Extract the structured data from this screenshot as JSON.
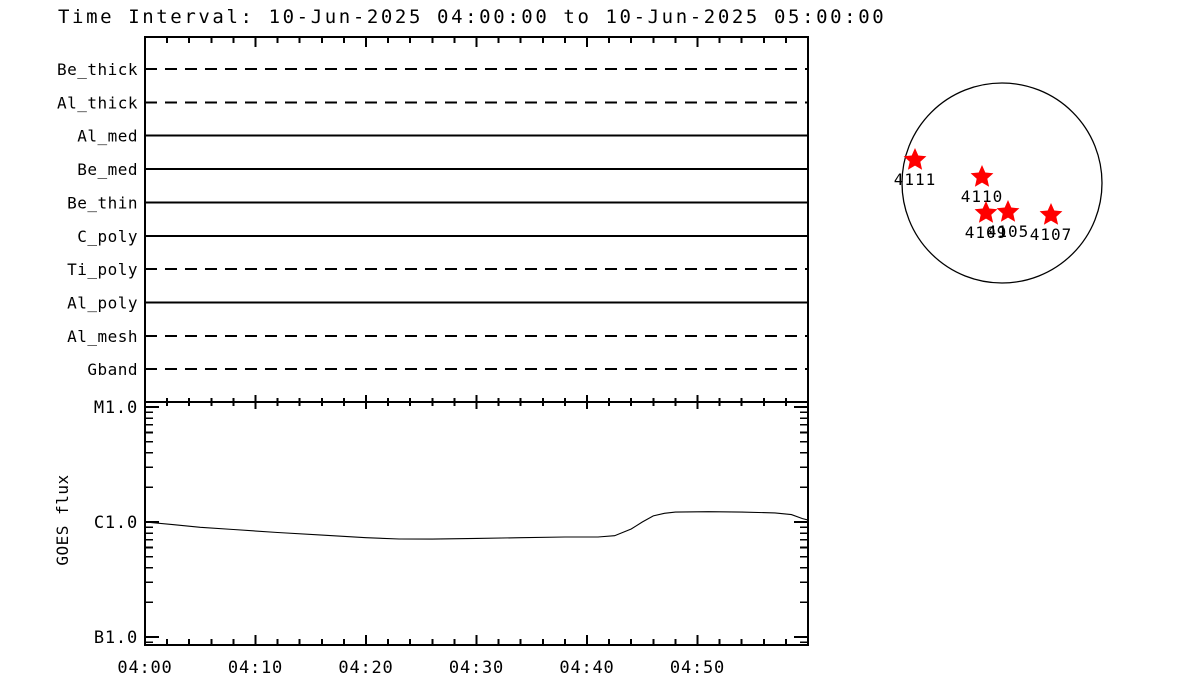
{
  "title": "Time Interval: 10-Jun-2025 04:00:00 to 10-Jun-2025 05:00:00",
  "colors": {
    "foreground": "#000000",
    "background": "#ffffff",
    "star": "#ff0000"
  },
  "chart_data": [
    {
      "id": "xrt-filter-timeline",
      "type": "line",
      "title": "",
      "xlabel": "",
      "ylabel": "",
      "x_range": [
        "04:00",
        "05:00"
      ],
      "x_minor_tick_minutes": 2,
      "x_major_tick_minutes": 10,
      "categories": [
        "Be_thick",
        "Al_thick",
        "Al_med",
        "Be_med",
        "Be_thin",
        "C_poly",
        "Ti_poly",
        "Al_poly",
        "Al_mesh",
        "Gband"
      ],
      "series": [
        {
          "name": "Be_thick",
          "line_style": "dashed",
          "coverage": "full-interval"
        },
        {
          "name": "Al_thick",
          "line_style": "dashed",
          "coverage": "full-interval"
        },
        {
          "name": "Al_med",
          "line_style": "solid",
          "coverage": "full-interval"
        },
        {
          "name": "Be_med",
          "line_style": "solid",
          "coverage": "full-interval"
        },
        {
          "name": "Be_thin",
          "line_style": "solid",
          "coverage": "full-interval"
        },
        {
          "name": "C_poly",
          "line_style": "solid",
          "coverage": "full-interval"
        },
        {
          "name": "Ti_poly",
          "line_style": "dashed",
          "coverage": "full-interval"
        },
        {
          "name": "Al_poly",
          "line_style": "solid",
          "coverage": "full-interval"
        },
        {
          "name": "Al_mesh",
          "line_style": "dashed",
          "coverage": "full-interval"
        },
        {
          "name": "Gband",
          "line_style": "dashed",
          "coverage": "full-interval"
        }
      ]
    },
    {
      "id": "goes-flux",
      "type": "line",
      "title": "",
      "xlabel": "",
      "ylabel": "GOES flux",
      "y_scale": "log",
      "y_major_ticks": [
        {
          "label": "M1.0",
          "flux_wm2": 1e-05
        },
        {
          "label": "C1.0",
          "flux_wm2": 1e-06
        },
        {
          "label": "B1.0",
          "flux_wm2": 1e-07
        }
      ],
      "ylim_wm2": [
        8.5e-08,
        1.1e-05
      ],
      "x_start": "04:00",
      "x_end": "05:00",
      "x_tick_labels": [
        "04:00",
        "04:10",
        "04:20",
        "04:30",
        "04:40",
        "04:50"
      ],
      "x_minor_tick_minutes": 2,
      "x_major_tick_minutes": 10,
      "series": [
        {
          "name": "GOES flux",
          "t_minutes": [
            0,
            2.5,
            5,
            8,
            12,
            16,
            20,
            23,
            26,
            30,
            34,
            38,
            41,
            42.5,
            44,
            45,
            46,
            47,
            48,
            51,
            54,
            57,
            58.5,
            59.5,
            60
          ],
          "flux_wm2": [
            1e-06,
            9.5e-07,
            9e-07,
            8.6e-07,
            8.1e-07,
            7.7e-07,
            7.3e-07,
            7.12e-07,
            7.1e-07,
            7.2e-07,
            7.3e-07,
            7.4e-07,
            7.4e-07,
            7.6e-07,
            8.7e-07,
            1e-06,
            1.13e-06,
            1.19e-06,
            1.22e-06,
            1.23e-06,
            1.22e-06,
            1.2e-06,
            1.16e-06,
            1.07e-06,
            1.04e-06
          ]
        }
      ]
    },
    {
      "id": "solar-disk-active-regions",
      "type": "scatter",
      "marker": "star",
      "marker_color": "#ff0000",
      "points": [
        {
          "label": "4111",
          "dx": -0.87,
          "dy": -0.23
        },
        {
          "label": "4110",
          "dx": -0.2,
          "dy": -0.06
        },
        {
          "label": "4109",
          "dx": -0.16,
          "dy": 0.3
        },
        {
          "label": "4105",
          "dx": 0.06,
          "dy": 0.29
        },
        {
          "label": "4107",
          "dx": 0.49,
          "dy": 0.32
        }
      ]
    }
  ]
}
